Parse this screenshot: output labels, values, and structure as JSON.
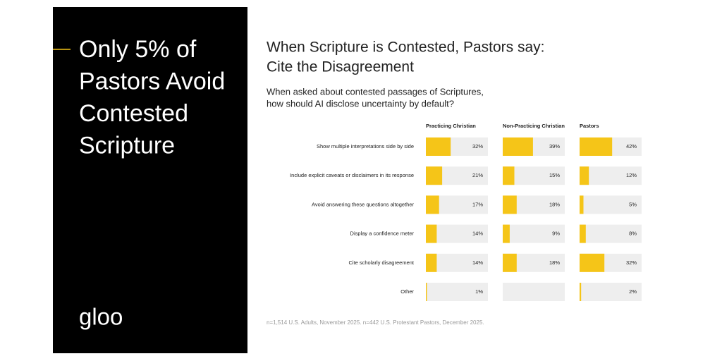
{
  "panel": {
    "headline": [
      "Only 5% of",
      "Pastors Avoid",
      "Contested",
      "Scripture"
    ],
    "brand": "gloo"
  },
  "chart_data": {
    "type": "bar",
    "orientation": "horizontal",
    "title": [
      "When Scripture is Contested, Pastors say:",
      "Cite the Disagreement"
    ],
    "subtitle": [
      "When asked about contested passages of Scriptures,",
      "how should AI disclose uncertainty by default?"
    ],
    "categories": [
      "Show multiple interpretations side by side",
      "Include explicit caveats or disclaimers in its response",
      "Avoid answering these questions altogether",
      "Display a confidence meter",
      "Cite scholarly disagreement",
      "Other"
    ],
    "series": [
      {
        "name": "Practicing Christian",
        "color": "#f5c518",
        "values": [
          32,
          21,
          17,
          14,
          14,
          1
        ],
        "value_labels": [
          "32%",
          "21%",
          "17%",
          "14%",
          "14%",
          "1%"
        ]
      },
      {
        "name": "Non-Practicing Christian",
        "color": "#f5c518",
        "values": [
          39,
          15,
          18,
          9,
          18,
          null
        ],
        "value_labels": [
          "39%",
          "15%",
          "18%",
          "9%",
          "18%",
          null
        ]
      },
      {
        "name": "Pastors",
        "color": "#f5c518",
        "values": [
          42,
          12,
          5,
          8,
          32,
          2
        ],
        "value_labels": [
          "42%",
          "12%",
          "5%",
          "8%",
          "32%",
          "2%"
        ]
      }
    ],
    "xlim": [
      0,
      80
    ],
    "note": "n=1,514 U.S. Adults, November 2025. n=442 U.S. Protestant Pastors, December 2025."
  }
}
